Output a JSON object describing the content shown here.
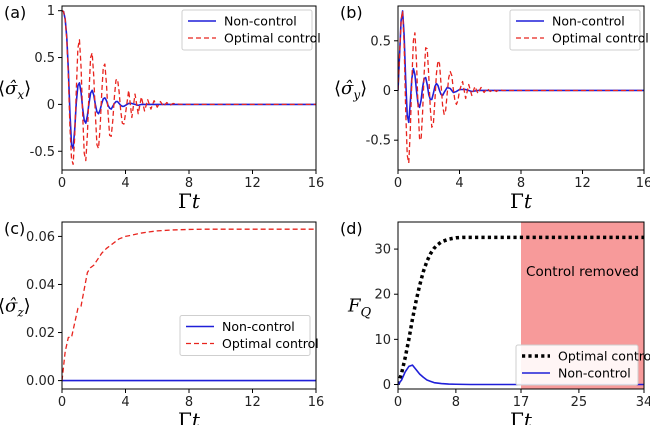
{
  "chart_data": [
    {
      "panel": "(a)",
      "type": "line",
      "ylabel": "⟨σ̂ₓ⟩",
      "xlabel": "Γt",
      "xlim": [
        0,
        16
      ],
      "ylim": [
        -0.7,
        1.05
      ],
      "xticks": [
        0,
        4,
        8,
        12,
        16
      ],
      "yticks": [
        -0.5,
        0.0,
        0.5,
        1.0
      ],
      "legend_position": "top-right",
      "series": [
        {
          "name": "Non-control",
          "color": "#1f1fd8",
          "style": "solid",
          "x": [
            0,
            0.1,
            0.2,
            0.3,
            0.4,
            0.5,
            0.6,
            0.7,
            0.8,
            0.9,
            1.0,
            1.1,
            1.2,
            1.3,
            1.4,
            1.5,
            1.6,
            1.7,
            1.8,
            1.9,
            2.0,
            2.1,
            2.2,
            2.3,
            2.4,
            2.5,
            2.6,
            2.7,
            2.8,
            2.9,
            3.0,
            3.1,
            3.2,
            3.3,
            3.4,
            3.5,
            3.6,
            3.7,
            3.8,
            3.9,
            4.0,
            4.2,
            4.4,
            4.6,
            4.8,
            5.0,
            5.2,
            5.4,
            5.6,
            5.8,
            6.0,
            6.5,
            7.0,
            8.0,
            10.0,
            12.0,
            16.0
          ],
          "y": [
            1.0,
            0.99,
            0.91,
            0.72,
            0.37,
            -0.09,
            -0.43,
            -0.47,
            -0.27,
            0.02,
            0.2,
            0.23,
            0.13,
            -0.04,
            -0.17,
            -0.2,
            -0.12,
            0.01,
            0.12,
            0.15,
            0.1,
            0.0,
            -0.08,
            -0.1,
            -0.06,
            0.01,
            0.06,
            0.07,
            0.04,
            -0.01,
            -0.04,
            -0.05,
            -0.02,
            0.01,
            0.03,
            0.03,
            0.01,
            -0.01,
            -0.02,
            -0.02,
            -0.01,
            0.01,
            0.01,
            0.0,
            -0.01,
            0.0,
            0.0,
            0.0,
            0.0,
            0.0,
            0.0,
            0.0,
            0.0,
            0.0,
            0.0,
            0.0,
            0.0
          ]
        },
        {
          "name": "Optimal control",
          "color": "#e8241e",
          "style": "dashed",
          "x": [
            0,
            0.1,
            0.2,
            0.3,
            0.4,
            0.5,
            0.6,
            0.7,
            0.8,
            0.9,
            1.0,
            1.1,
            1.2,
            1.3,
            1.4,
            1.5,
            1.6,
            1.7,
            1.8,
            1.9,
            2.0,
            2.1,
            2.2,
            2.3,
            2.4,
            2.5,
            2.6,
            2.7,
            2.8,
            2.9,
            3.0,
            3.1,
            3.2,
            3.3,
            3.4,
            3.5,
            3.6,
            3.7,
            3.8,
            3.9,
            4.0,
            4.2,
            4.4,
            4.6,
            4.8,
            5.0,
            5.2,
            5.4,
            5.6,
            5.8,
            6.0,
            6.2,
            6.4,
            6.6,
            6.8,
            7.0,
            7.5,
            8.0,
            9.0,
            10.0,
            12.0,
            16.0
          ],
          "y": [
            1.0,
            0.99,
            0.91,
            0.7,
            0.3,
            -0.25,
            -0.58,
            -0.64,
            -0.35,
            0.15,
            0.6,
            0.69,
            0.4,
            -0.1,
            -0.52,
            -0.6,
            -0.32,
            0.13,
            0.5,
            0.55,
            0.3,
            -0.1,
            -0.43,
            -0.47,
            -0.25,
            0.11,
            0.4,
            0.43,
            0.22,
            -0.09,
            -0.33,
            -0.34,
            -0.17,
            0.08,
            0.26,
            0.27,
            0.13,
            -0.07,
            -0.2,
            -0.21,
            -0.1,
            0.15,
            -0.14,
            0.11,
            -0.1,
            0.08,
            -0.07,
            0.05,
            -0.05,
            0.04,
            -0.03,
            0.03,
            -0.02,
            0.02,
            -0.01,
            0.01,
            0.0,
            0.0,
            0.0,
            0.0,
            0.0,
            0.0
          ]
        }
      ]
    },
    {
      "panel": "(b)",
      "type": "line",
      "ylabel": "⟨σ̂ᵧ⟩",
      "xlabel": "Γt",
      "xlim": [
        0,
        16
      ],
      "ylim": [
        -0.8,
        0.85
      ],
      "xticks": [
        0,
        4,
        8,
        12,
        16
      ],
      "yticks": [
        -0.5,
        0.0,
        0.5
      ],
      "legend_position": "top-right",
      "series": [
        {
          "name": "Non-control",
          "color": "#1f1fd8",
          "style": "solid",
          "x": [
            0,
            0.1,
            0.2,
            0.3,
            0.4,
            0.5,
            0.6,
            0.7,
            0.8,
            0.9,
            1.0,
            1.1,
            1.2,
            1.3,
            1.4,
            1.5,
            1.6,
            1.7,
            1.8,
            1.9,
            2.0,
            2.1,
            2.2,
            2.3,
            2.4,
            2.5,
            2.6,
            2.7,
            2.8,
            2.9,
            3.0,
            3.2,
            3.4,
            3.6,
            3.8,
            4.0,
            4.4,
            4.8,
            5.2,
            5.6,
            6.0,
            7.0,
            8.0,
            16.0
          ],
          "y": [
            0.0,
            0.35,
            0.7,
            0.8,
            0.55,
            0.1,
            -0.25,
            -0.32,
            -0.12,
            0.12,
            0.22,
            0.16,
            0.0,
            -0.13,
            -0.17,
            -0.1,
            0.03,
            0.12,
            0.13,
            0.06,
            -0.04,
            -0.09,
            -0.09,
            -0.03,
            0.04,
            0.07,
            0.05,
            0.0,
            -0.04,
            -0.05,
            -0.02,
            0.03,
            0.02,
            -0.02,
            -0.01,
            0.01,
            0.01,
            -0.01,
            0.0,
            0.0,
            0.0,
            0.0,
            0.0,
            0.0
          ]
        },
        {
          "name": "Optimal control",
          "color": "#e8241e",
          "style": "dashed",
          "x": [
            0,
            0.1,
            0.2,
            0.3,
            0.4,
            0.5,
            0.6,
            0.7,
            0.8,
            0.9,
            1.0,
            1.1,
            1.2,
            1.3,
            1.4,
            1.5,
            1.6,
            1.7,
            1.8,
            1.9,
            2.0,
            2.1,
            2.2,
            2.3,
            2.4,
            2.5,
            2.6,
            2.7,
            2.8,
            2.9,
            3.0,
            3.1,
            3.2,
            3.3,
            3.4,
            3.5,
            3.6,
            3.7,
            3.8,
            3.9,
            4.0,
            4.2,
            4.4,
            4.6,
            4.8,
            5.0,
            5.2,
            5.4,
            5.6,
            5.8,
            6.0,
            6.2,
            6.4,
            6.6,
            6.8,
            7.0,
            7.5,
            8.0,
            9.0,
            16.0
          ],
          "y": [
            0.0,
            0.35,
            0.7,
            0.8,
            0.45,
            -0.2,
            -0.65,
            -0.73,
            -0.4,
            0.1,
            0.5,
            0.58,
            0.3,
            -0.15,
            -0.48,
            -0.5,
            -0.22,
            0.17,
            0.43,
            0.42,
            0.15,
            -0.18,
            -0.37,
            -0.34,
            -0.1,
            0.17,
            0.3,
            0.27,
            0.06,
            -0.15,
            -0.24,
            -0.2,
            -0.03,
            0.13,
            0.19,
            0.15,
            0.01,
            -0.1,
            -0.14,
            -0.1,
            0.0,
            0.09,
            -0.08,
            0.06,
            -0.05,
            0.04,
            -0.03,
            0.03,
            -0.02,
            0.02,
            -0.01,
            0.01,
            -0.01,
            0.01,
            0.0,
            0.0,
            0.0,
            0.0,
            0.0,
            0.0
          ]
        }
      ]
    },
    {
      "panel": "(c)",
      "type": "line",
      "ylabel": "⟨σ̂_z⟩",
      "xlabel": "Γt",
      "xlim": [
        0,
        16
      ],
      "ylim": [
        -0.0035,
        0.066
      ],
      "xticks": [
        0,
        4,
        8,
        12,
        16
      ],
      "yticks": [
        0.0,
        0.02,
        0.04,
        0.06
      ],
      "ytick_labels": [
        "0.00",
        "0.02",
        "0.04",
        "0.06"
      ],
      "legend_position": "center-right",
      "series": [
        {
          "name": "Non-control",
          "color": "#1f1fd8",
          "style": "solid",
          "x": [
            0,
            16
          ],
          "y": [
            0.0,
            0.0
          ]
        },
        {
          "name": "Optimal control",
          "color": "#e8241e",
          "style": "dashed",
          "x": [
            0,
            0.2,
            0.4,
            0.6,
            0.8,
            1.0,
            1.2,
            1.4,
            1.6,
            1.8,
            2.0,
            2.2,
            2.5,
            2.8,
            3.2,
            3.6,
            4.0,
            4.5,
            5.0,
            5.5,
            6.0,
            7.0,
            8.0,
            9.0,
            10.0,
            12.0,
            14.0,
            16.0
          ],
          "y": [
            0.0,
            0.012,
            0.018,
            0.018,
            0.024,
            0.03,
            0.031,
            0.038,
            0.045,
            0.047,
            0.048,
            0.05,
            0.053,
            0.055,
            0.057,
            0.059,
            0.06,
            0.0607,
            0.0614,
            0.0619,
            0.0623,
            0.0627,
            0.0629,
            0.063,
            0.063,
            0.063,
            0.063,
            0.063
          ]
        }
      ]
    },
    {
      "panel": "(d)",
      "type": "line",
      "ylabel": "F_Q",
      "xlabel": "Γt",
      "xlim": [
        0,
        34
      ],
      "ylim": [
        -1,
        36
      ],
      "xticks": [
        0,
        8,
        17,
        25,
        34
      ],
      "yticks": [
        0,
        10,
        20,
        30
      ],
      "legend_position": "bottom-right",
      "shaded_region": {
        "x": [
          17,
          34
        ],
        "color": "#f79a9a",
        "label": "Control removed"
      },
      "series": [
        {
          "name": "Optimal control",
          "color": "#000000",
          "style": "dotted",
          "x": [
            0,
            0.5,
            1.0,
            1.5,
            2.0,
            2.5,
            3.0,
            3.5,
            4.0,
            4.5,
            5.0,
            5.5,
            6.0,
            7.0,
            8.0,
            9.0,
            10.0,
            12.0,
            17.0,
            25.0,
            34.0
          ],
          "y": [
            0.0,
            2.5,
            6.0,
            10.0,
            14.5,
            18.5,
            22.0,
            25.0,
            27.3,
            29.0,
            30.2,
            31.0,
            31.6,
            32.2,
            32.5,
            32.6,
            32.6,
            32.6,
            32.6,
            32.6,
            32.6
          ]
        },
        {
          "name": "Non-control",
          "color": "#1f1fd8",
          "style": "solid",
          "x": [
            0,
            0.5,
            1.0,
            1.5,
            2.0,
            2.5,
            3.0,
            3.5,
            4.0,
            4.5,
            5.0,
            6.0,
            7.0,
            8.0,
            10.0,
            34.0
          ],
          "y": [
            0.0,
            1.0,
            2.8,
            4.0,
            4.3,
            3.3,
            2.3,
            1.6,
            1.0,
            0.7,
            0.4,
            0.2,
            0.1,
            0.05,
            0.0,
            0.0
          ]
        }
      ]
    }
  ]
}
